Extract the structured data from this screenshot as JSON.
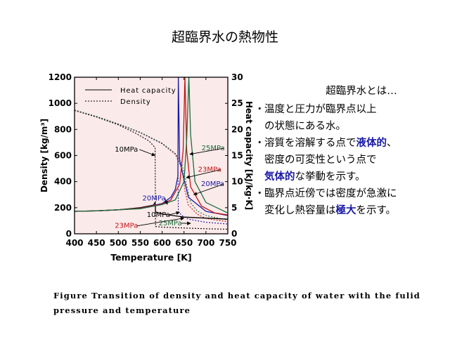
{
  "page_title": "超臨界水の熱物性",
  "panel": {
    "heading": "超臨界水とは…",
    "bullets": [
      {
        "mark": "・",
        "lines": [
          [
            {
              "t": "温度と圧力が臨界点以上"
            }
          ],
          [
            {
              "t": "の状態にある水。"
            }
          ]
        ]
      },
      {
        "mark": "・",
        "lines": [
          [
            {
              "t": "溶質を溶解する点で"
            },
            {
              "t": "液体的",
              "hl": true
            },
            {
              "t": "、"
            }
          ],
          [
            {
              "t": "密度の可変性という点で"
            }
          ],
          [
            {
              "t": "気体的",
              "hl": true
            },
            {
              "t": "な挙動を示す。"
            }
          ]
        ]
      },
      {
        "mark": "・",
        "lines": [
          [
            {
              "t": "臨界点近傍では密度が急激に"
            }
          ],
          [
            {
              "t": "変化し熱容量は"
            },
            {
              "t": "極大",
              "hl": true
            },
            {
              "t": "を示す。"
            }
          ]
        ]
      }
    ]
  },
  "caption": "Figure  Transition of density and heat capacity of water with the fulid pressure and temperature",
  "chart_data": {
    "type": "line",
    "xlabel": "Temperature [K]",
    "ylabel": "Density [kg/m³]",
    "y2label": "Heat capacity [kJ/kg·K]",
    "xlim": [
      400,
      750
    ],
    "ylim": [
      0,
      1200
    ],
    "y2lim": [
      0,
      30
    ],
    "xticks": [
      400,
      450,
      500,
      550,
      600,
      650,
      700,
      750
    ],
    "yticks": [
      0,
      200,
      400,
      600,
      800,
      1000,
      1200
    ],
    "y2ticks": [
      0,
      5,
      10,
      15,
      20,
      25,
      30
    ],
    "grid": false,
    "legend": {
      "position": "top-left",
      "entries": [
        {
          "label": "Heat capacity",
          "style": "solid"
        },
        {
          "label": "Density",
          "style": "dotted"
        }
      ]
    },
    "colors": {
      "10MPa": "#000000",
      "20MPa": "#1a1aa6",
      "23MPa": "#c41414",
      "25MPa": "#1a6e3c",
      "background": "#fbeaea"
    },
    "series": [
      {
        "name": "10MPa",
        "kind": "density",
        "axis": "left",
        "x": [
          400,
          450,
          500,
          540,
          570,
          584,
          585,
          600,
          650,
          700,
          750
        ],
        "y": [
          945,
          895,
          835,
          770,
          712,
          660,
          56,
          51,
          44,
          39,
          35
        ]
      },
      {
        "name": "20MPa",
        "kind": "density",
        "axis": "left",
        "x": [
          400,
          450,
          500,
          550,
          600,
          630,
          636,
          637,
          645,
          660,
          700,
          750
        ],
        "y": [
          947,
          898,
          840,
          775,
          690,
          610,
          570,
          170,
          140,
          112,
          88,
          75
        ]
      },
      {
        "name": "23MPa",
        "kind": "density",
        "axis": "left",
        "x": [
          400,
          450,
          500,
          550,
          600,
          630,
          645,
          652,
          660,
          680,
          700,
          750
        ],
        "y": [
          948,
          899,
          841,
          777,
          693,
          610,
          500,
          330,
          220,
          150,
          118,
          92
        ]
      },
      {
        "name": "25MPa",
        "kind": "density",
        "axis": "left",
        "x": [
          400,
          450,
          500,
          550,
          600,
          630,
          645,
          656,
          665,
          680,
          700,
          750
        ],
        "y": [
          949,
          900,
          842,
          778,
          695,
          615,
          540,
          370,
          240,
          175,
          140,
          105
        ]
      },
      {
        "name": "10MPa",
        "kind": "heat_capacity",
        "axis": "right",
        "x": [
          400,
          450,
          500,
          550,
          580,
          584,
          585,
          600,
          650,
          700,
          750
        ],
        "y": [
          4.3,
          4.4,
          4.6,
          5.0,
          5.5,
          6.0,
          4.2,
          3.8,
          3.2,
          3.0,
          2.8
        ]
      },
      {
        "name": "20MPa",
        "kind": "heat_capacity",
        "axis": "right",
        "x": [
          400,
          450,
          500,
          550,
          600,
          620,
          630,
          636,
          637,
          640,
          660,
          700,
          750
        ],
        "y": [
          4.3,
          4.4,
          4.6,
          4.9,
          5.8,
          7.0,
          8.5,
          11.0,
          30,
          14.0,
          7.0,
          4.3,
          3.5
        ]
      },
      {
        "name": "23MPa",
        "kind": "heat_capacity",
        "axis": "right",
        "x": [
          400,
          450,
          500,
          550,
          600,
          620,
          640,
          648,
          652,
          656,
          665,
          690,
          720,
          750
        ],
        "y": [
          4.3,
          4.4,
          4.6,
          4.9,
          5.7,
          6.5,
          9.5,
          16.0,
          30,
          16.0,
          9.0,
          5.3,
          4.0,
          3.6
        ]
      },
      {
        "name": "25MPa",
        "kind": "heat_capacity",
        "axis": "right",
        "x": [
          400,
          450,
          500,
          550,
          600,
          630,
          650,
          656,
          661,
          665,
          675,
          700,
          750
        ],
        "y": [
          4.3,
          4.4,
          4.6,
          4.8,
          5.6,
          6.5,
          10.0,
          18.0,
          30,
          19.0,
          10.0,
          6.0,
          4.0
        ]
      }
    ],
    "annotations": [
      {
        "text": "10MPa",
        "color": "#000000",
        "x": 545,
        "y": 630,
        "axis": "left",
        "arrow_to": [
          584,
          600
        ],
        "anchor": "end"
      },
      {
        "text": "25MPa",
        "color": "#1a6e3c",
        "x": 690,
        "y": 640,
        "axis": "left",
        "arrow_to": [
          663,
          610
        ],
        "anchor": "start"
      },
      {
        "text": "23MPa",
        "color": "#c41414",
        "x": 682,
        "y": 475,
        "axis": "left",
        "arrow_to": [
          655,
          430
        ],
        "anchor": "start"
      },
      {
        "text": "20MPa",
        "color": "#1a1aa6",
        "x": 689,
        "y": 365,
        "axis": "left",
        "arrow_to": [
          672,
          300
        ],
        "anchor": "start"
      },
      {
        "text": "20MPa",
        "color": "#1a1aa6",
        "x": 555,
        "y": 255,
        "axis": "left",
        "arrow_to": [
          612,
          225
        ],
        "anchor": "start"
      },
      {
        "text": "10MPa",
        "color": "#000000",
        "x": 565,
        "y": 130,
        "axis": "left",
        "arrow_to": [
          640,
          165
        ],
        "anchor": "start"
      },
      {
        "text": "23MPa",
        "color": "#c41414",
        "x": 492,
        "y": 45,
        "axis": "left",
        "arrow_to": [
          650,
          120
        ],
        "anchor": "start"
      },
      {
        "text": "25MPa",
        "color": "#1a6e3c",
        "x": 592,
        "y": 65,
        "axis": "left",
        "arrow_to": [
          665,
          80
        ],
        "anchor": "start"
      }
    ]
  }
}
